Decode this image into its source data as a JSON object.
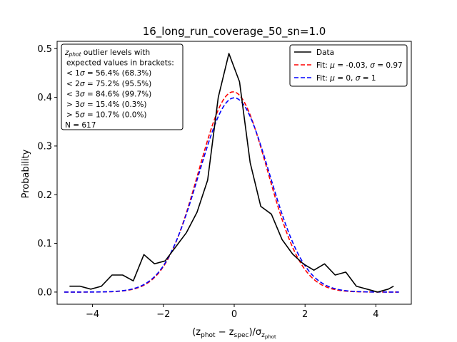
{
  "chart_data": {
    "type": "line",
    "title": "16_long_run_coverage_50_sn=1.0",
    "xlabel_parts": [
      "(z",
      "phot",
      " − z",
      "spec",
      ")/σ",
      "z",
      "phot"
    ],
    "ylabel": "Probability",
    "xlim": [
      -5.0,
      5.0
    ],
    "ylim": [
      -0.025,
      0.515
    ],
    "xticks": [
      -4,
      -2,
      0,
      2,
      4
    ],
    "xtick_labels": [
      "−4",
      "−2",
      "0",
      "2",
      "4"
    ],
    "yticks": [
      0.0,
      0.1,
      0.2,
      0.3,
      0.4,
      0.5
    ],
    "ytick_labels": [
      "0.0",
      "0.1",
      "0.2",
      "0.3",
      "0.4",
      "0.5"
    ],
    "grid": false,
    "legend_position": "top-right",
    "series": [
      {
        "name": "Data",
        "color": "#000000",
        "style": "solid",
        "x": [
          -4.65,
          -4.35,
          -4.05,
          -3.75,
          -3.45,
          -3.15,
          -2.85,
          -2.55,
          -2.25,
          -1.95,
          -1.65,
          -1.35,
          -1.05,
          -0.75,
          -0.45,
          -0.15,
          0.15,
          0.45,
          0.75,
          1.05,
          1.35,
          1.65,
          1.95,
          2.25,
          2.55,
          2.85,
          3.15,
          3.45,
          3.75,
          4.05,
          4.35,
          4.5
        ],
        "y": [
          0.012,
          0.012,
          0.006,
          0.012,
          0.035,
          0.035,
          0.023,
          0.077,
          0.058,
          0.064,
          0.093,
          0.122,
          0.164,
          0.23,
          0.4,
          0.49,
          0.432,
          0.266,
          0.176,
          0.16,
          0.108,
          0.078,
          0.058,
          0.045,
          0.058,
          0.035,
          0.041,
          0.012,
          0.006,
          0.0,
          0.006,
          0.012
        ]
      },
      {
        "name_parts": [
          "Fit: ",
          "μ",
          " = -0.03, ",
          "σ",
          " = 0.97"
        ],
        "color": "#ff0000",
        "style": "dashed",
        "mu": -0.03,
        "sigma": 0.97
      },
      {
        "name_parts": [
          "Fit: ",
          "μ",
          " = 0, ",
          "σ",
          " = 1"
        ],
        "color": "#0000ff",
        "style": "dashed",
        "mu": 0,
        "sigma": 1
      }
    ],
    "fit_x_range": [
      -4.8,
      4.65
    ],
    "annotation": {
      "line1_sub": "phot",
      "line1_rest": " outlier levels with",
      "line2": "expected values in brackets:",
      "rows": [
        {
          "lt": "< 1",
          "val": " = 56.4% (68.3%)"
        },
        {
          "lt": "< 2",
          "val": " = 75.2% (95.5%)"
        },
        {
          "lt": "< 3",
          "val": " = 84.6% (99.7%)"
        },
        {
          "lt": "> 3",
          "val": " = 15.4% (0.3%)"
        },
        {
          "lt": "> 5",
          "val": " = 10.7% (0.0%)"
        }
      ],
      "n_label": "N = 617"
    }
  }
}
